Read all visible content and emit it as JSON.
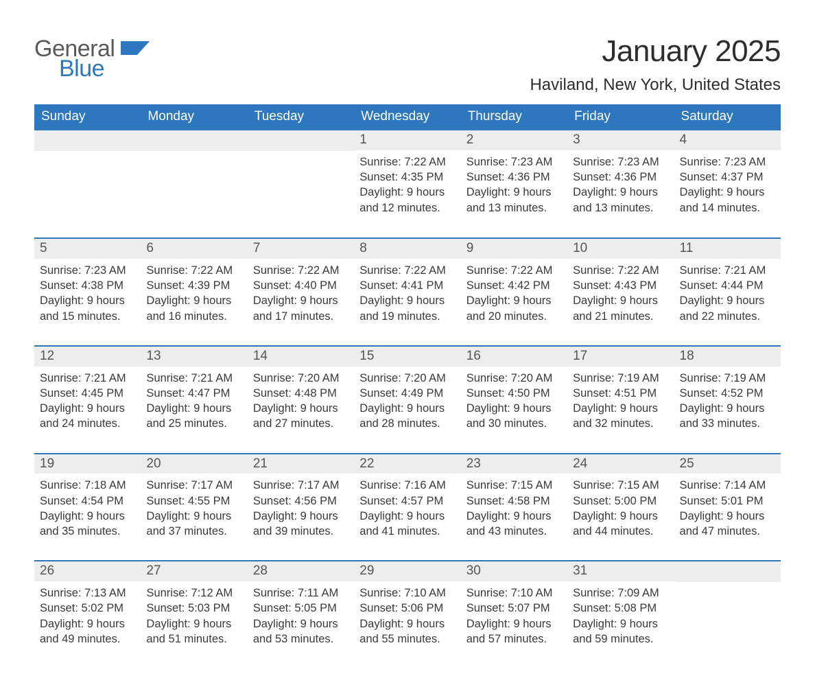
{
  "brand": {
    "word1": "General",
    "word2": "Blue",
    "brand_color": "#2c77bd",
    "gray": "#5a5a5a"
  },
  "header": {
    "title": "January 2025",
    "location": "Haviland, New York, United States"
  },
  "calendar": {
    "type": "table",
    "header_bg": "#2c77bd",
    "header_fg": "#ffffff",
    "daynum_bg": "#ededed",
    "row_border_color": "#2c77bd",
    "columns": [
      "Sunday",
      "Monday",
      "Tuesday",
      "Wednesday",
      "Thursday",
      "Friday",
      "Saturday"
    ],
    "weeks": [
      [
        {
          "day": "",
          "sunrise": "",
          "sunset": "",
          "daylight_a": "",
          "daylight_b": ""
        },
        {
          "day": "",
          "sunrise": "",
          "sunset": "",
          "daylight_a": "",
          "daylight_b": ""
        },
        {
          "day": "",
          "sunrise": "",
          "sunset": "",
          "daylight_a": "",
          "daylight_b": ""
        },
        {
          "day": "1",
          "sunrise": "Sunrise: 7:22 AM",
          "sunset": "Sunset: 4:35 PM",
          "daylight_a": "Daylight: 9 hours",
          "daylight_b": "and 12 minutes."
        },
        {
          "day": "2",
          "sunrise": "Sunrise: 7:23 AM",
          "sunset": "Sunset: 4:36 PM",
          "daylight_a": "Daylight: 9 hours",
          "daylight_b": "and 13 minutes."
        },
        {
          "day": "3",
          "sunrise": "Sunrise: 7:23 AM",
          "sunset": "Sunset: 4:36 PM",
          "daylight_a": "Daylight: 9 hours",
          "daylight_b": "and 13 minutes."
        },
        {
          "day": "4",
          "sunrise": "Sunrise: 7:23 AM",
          "sunset": "Sunset: 4:37 PM",
          "daylight_a": "Daylight: 9 hours",
          "daylight_b": "and 14 minutes."
        }
      ],
      [
        {
          "day": "5",
          "sunrise": "Sunrise: 7:23 AM",
          "sunset": "Sunset: 4:38 PM",
          "daylight_a": "Daylight: 9 hours",
          "daylight_b": "and 15 minutes."
        },
        {
          "day": "6",
          "sunrise": "Sunrise: 7:22 AM",
          "sunset": "Sunset: 4:39 PM",
          "daylight_a": "Daylight: 9 hours",
          "daylight_b": "and 16 minutes."
        },
        {
          "day": "7",
          "sunrise": "Sunrise: 7:22 AM",
          "sunset": "Sunset: 4:40 PM",
          "daylight_a": "Daylight: 9 hours",
          "daylight_b": "and 17 minutes."
        },
        {
          "day": "8",
          "sunrise": "Sunrise: 7:22 AM",
          "sunset": "Sunset: 4:41 PM",
          "daylight_a": "Daylight: 9 hours",
          "daylight_b": "and 19 minutes."
        },
        {
          "day": "9",
          "sunrise": "Sunrise: 7:22 AM",
          "sunset": "Sunset: 4:42 PM",
          "daylight_a": "Daylight: 9 hours",
          "daylight_b": "and 20 minutes."
        },
        {
          "day": "10",
          "sunrise": "Sunrise: 7:22 AM",
          "sunset": "Sunset: 4:43 PM",
          "daylight_a": "Daylight: 9 hours",
          "daylight_b": "and 21 minutes."
        },
        {
          "day": "11",
          "sunrise": "Sunrise: 7:21 AM",
          "sunset": "Sunset: 4:44 PM",
          "daylight_a": "Daylight: 9 hours",
          "daylight_b": "and 22 minutes."
        }
      ],
      [
        {
          "day": "12",
          "sunrise": "Sunrise: 7:21 AM",
          "sunset": "Sunset: 4:45 PM",
          "daylight_a": "Daylight: 9 hours",
          "daylight_b": "and 24 minutes."
        },
        {
          "day": "13",
          "sunrise": "Sunrise: 7:21 AM",
          "sunset": "Sunset: 4:47 PM",
          "daylight_a": "Daylight: 9 hours",
          "daylight_b": "and 25 minutes."
        },
        {
          "day": "14",
          "sunrise": "Sunrise: 7:20 AM",
          "sunset": "Sunset: 4:48 PM",
          "daylight_a": "Daylight: 9 hours",
          "daylight_b": "and 27 minutes."
        },
        {
          "day": "15",
          "sunrise": "Sunrise: 7:20 AM",
          "sunset": "Sunset: 4:49 PM",
          "daylight_a": "Daylight: 9 hours",
          "daylight_b": "and 28 minutes."
        },
        {
          "day": "16",
          "sunrise": "Sunrise: 7:20 AM",
          "sunset": "Sunset: 4:50 PM",
          "daylight_a": "Daylight: 9 hours",
          "daylight_b": "and 30 minutes."
        },
        {
          "day": "17",
          "sunrise": "Sunrise: 7:19 AM",
          "sunset": "Sunset: 4:51 PM",
          "daylight_a": "Daylight: 9 hours",
          "daylight_b": "and 32 minutes."
        },
        {
          "day": "18",
          "sunrise": "Sunrise: 7:19 AM",
          "sunset": "Sunset: 4:52 PM",
          "daylight_a": "Daylight: 9 hours",
          "daylight_b": "and 33 minutes."
        }
      ],
      [
        {
          "day": "19",
          "sunrise": "Sunrise: 7:18 AM",
          "sunset": "Sunset: 4:54 PM",
          "daylight_a": "Daylight: 9 hours",
          "daylight_b": "and 35 minutes."
        },
        {
          "day": "20",
          "sunrise": "Sunrise: 7:17 AM",
          "sunset": "Sunset: 4:55 PM",
          "daylight_a": "Daylight: 9 hours",
          "daylight_b": "and 37 minutes."
        },
        {
          "day": "21",
          "sunrise": "Sunrise: 7:17 AM",
          "sunset": "Sunset: 4:56 PM",
          "daylight_a": "Daylight: 9 hours",
          "daylight_b": "and 39 minutes."
        },
        {
          "day": "22",
          "sunrise": "Sunrise: 7:16 AM",
          "sunset": "Sunset: 4:57 PM",
          "daylight_a": "Daylight: 9 hours",
          "daylight_b": "and 41 minutes."
        },
        {
          "day": "23",
          "sunrise": "Sunrise: 7:15 AM",
          "sunset": "Sunset: 4:58 PM",
          "daylight_a": "Daylight: 9 hours",
          "daylight_b": "and 43 minutes."
        },
        {
          "day": "24",
          "sunrise": "Sunrise: 7:15 AM",
          "sunset": "Sunset: 5:00 PM",
          "daylight_a": "Daylight: 9 hours",
          "daylight_b": "and 44 minutes."
        },
        {
          "day": "25",
          "sunrise": "Sunrise: 7:14 AM",
          "sunset": "Sunset: 5:01 PM",
          "daylight_a": "Daylight: 9 hours",
          "daylight_b": "and 47 minutes."
        }
      ],
      [
        {
          "day": "26",
          "sunrise": "Sunrise: 7:13 AM",
          "sunset": "Sunset: 5:02 PM",
          "daylight_a": "Daylight: 9 hours",
          "daylight_b": "and 49 minutes."
        },
        {
          "day": "27",
          "sunrise": "Sunrise: 7:12 AM",
          "sunset": "Sunset: 5:03 PM",
          "daylight_a": "Daylight: 9 hours",
          "daylight_b": "and 51 minutes."
        },
        {
          "day": "28",
          "sunrise": "Sunrise: 7:11 AM",
          "sunset": "Sunset: 5:05 PM",
          "daylight_a": "Daylight: 9 hours",
          "daylight_b": "and 53 minutes."
        },
        {
          "day": "29",
          "sunrise": "Sunrise: 7:10 AM",
          "sunset": "Sunset: 5:06 PM",
          "daylight_a": "Daylight: 9 hours",
          "daylight_b": "and 55 minutes."
        },
        {
          "day": "30",
          "sunrise": "Sunrise: 7:10 AM",
          "sunset": "Sunset: 5:07 PM",
          "daylight_a": "Daylight: 9 hours",
          "daylight_b": "and 57 minutes."
        },
        {
          "day": "31",
          "sunrise": "Sunrise: 7:09 AM",
          "sunset": "Sunset: 5:08 PM",
          "daylight_a": "Daylight: 9 hours",
          "daylight_b": "and 59 minutes."
        },
        {
          "day": "",
          "sunrise": "",
          "sunset": "",
          "daylight_a": "",
          "daylight_b": ""
        }
      ]
    ]
  }
}
